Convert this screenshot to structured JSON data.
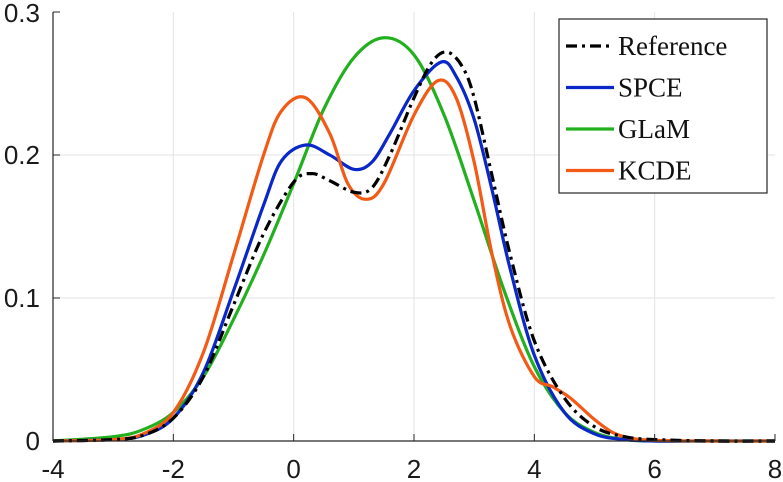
{
  "chart_data": {
    "type": "line",
    "title": "",
    "xlabel": "",
    "ylabel": "",
    "xlim": [
      -4,
      8
    ],
    "ylim": [
      0,
      0.3
    ],
    "xticks": [
      -4,
      -2,
      0,
      2,
      4,
      6,
      8
    ],
    "yticks": [
      0,
      0.1,
      0.2,
      0.3
    ],
    "xtick_labels": [
      "-4",
      "-2",
      "0",
      "2",
      "4",
      "6",
      "8"
    ],
    "ytick_labels": [
      "0",
      "0.1",
      "0.2",
      "0.3"
    ],
    "grid": true,
    "legend_position": "top-right",
    "series": [
      {
        "name": "Reference",
        "color": "#000000",
        "style": "dash-dot",
        "x": [
          -4,
          -3,
          -2.5,
          -2,
          -1.5,
          -1,
          -0.5,
          0,
          0.3,
          0.6,
          1,
          1.3,
          1.6,
          2,
          2.3,
          2.55,
          2.8,
          3,
          3.3,
          3.6,
          4,
          4.5,
          5,
          5.5,
          6,
          7,
          8
        ],
        "y": [
          0,
          0.001,
          0.004,
          0.016,
          0.045,
          0.095,
          0.145,
          0.181,
          0.187,
          0.182,
          0.174,
          0.177,
          0.2,
          0.24,
          0.265,
          0.272,
          0.262,
          0.24,
          0.185,
          0.13,
          0.07,
          0.03,
          0.01,
          0.003,
          0.001,
          0,
          0
        ]
      },
      {
        "name": "SPCE",
        "color": "#0a28c7",
        "style": "solid",
        "x": [
          -4,
          -3,
          -2.5,
          -2,
          -1.5,
          -1,
          -0.5,
          -0.2,
          0.2,
          0.6,
          1,
          1.3,
          1.6,
          2,
          2.45,
          2.7,
          3,
          3.3,
          3.6,
          4,
          4.5,
          5,
          5.5,
          6,
          7,
          8
        ],
        "y": [
          0,
          0.001,
          0.004,
          0.016,
          0.048,
          0.105,
          0.165,
          0.196,
          0.207,
          0.2,
          0.19,
          0.195,
          0.215,
          0.245,
          0.265,
          0.255,
          0.225,
          0.175,
          0.12,
          0.06,
          0.02,
          0.005,
          0.001,
          0,
          0,
          0
        ]
      },
      {
        "name": "GLaM",
        "color": "#22b01e",
        "style": "solid",
        "x": [
          -4,
          -3,
          -2.5,
          -2,
          -1.5,
          -1,
          -0.5,
          0,
          0.5,
          1,
          1.5,
          2,
          2.5,
          3,
          3.5,
          4,
          4.5,
          5,
          5.5,
          6,
          7,
          8
        ],
        "y": [
          0,
          0.003,
          0.008,
          0.02,
          0.045,
          0.085,
          0.13,
          0.18,
          0.232,
          0.268,
          0.282,
          0.27,
          0.228,
          0.168,
          0.105,
          0.052,
          0.02,
          0.006,
          0.001,
          0,
          0,
          0
        ]
      },
      {
        "name": "KCDE",
        "color": "#f25a15",
        "style": "solid",
        "x": [
          -4,
          -3,
          -2.5,
          -2,
          -1.5,
          -1,
          -0.5,
          -0.2,
          0.2,
          0.6,
          0.9,
          1.2,
          1.5,
          2,
          2.4,
          2.7,
          3,
          3.3,
          3.6,
          4,
          4.3,
          4.6,
          5,
          5.3,
          5.6,
          6,
          7,
          8
        ],
        "y": [
          0,
          0.001,
          0.005,
          0.02,
          0.062,
          0.13,
          0.2,
          0.231,
          0.24,
          0.215,
          0.18,
          0.169,
          0.18,
          0.228,
          0.252,
          0.24,
          0.195,
          0.13,
          0.08,
          0.045,
          0.038,
          0.03,
          0.015,
          0.006,
          0.002,
          0.0005,
          0,
          0
        ]
      }
    ]
  }
}
